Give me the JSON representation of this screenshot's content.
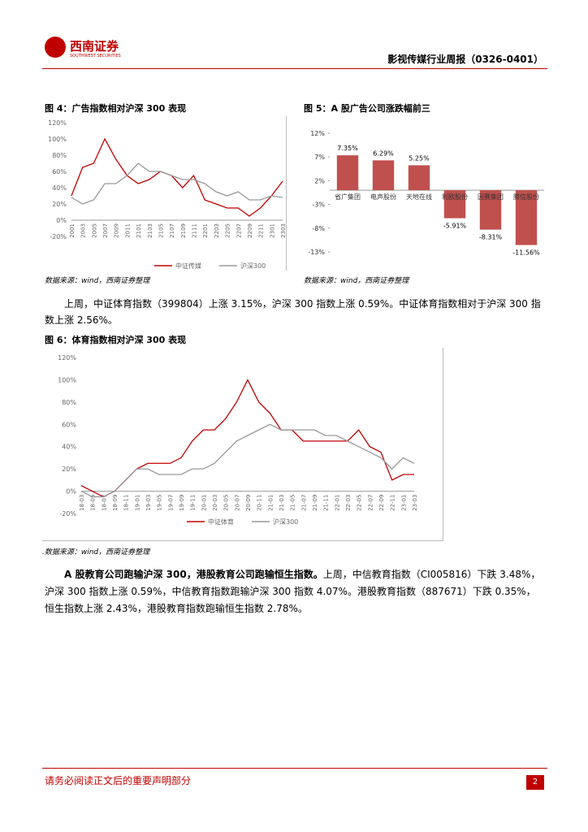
{
  "header": {
    "logo_cn": "西南证券",
    "logo_en": "SOUTHWEST SECURITIES",
    "report_title": "影视传媒行业周报（0326-0401）"
  },
  "figures": [
    {
      "title": "图 4：广告指数相对沪深 300 表现",
      "source": "数据来源：wind，西南证券整理",
      "chart_data": {
        "type": "line",
        "categories": [
          "2001",
          "2003",
          "2005",
          "2007",
          "2009",
          "2011",
          "2101",
          "2103",
          "2105",
          "2107",
          "2109",
          "2111",
          "2201",
          "2203",
          "2205",
          "2207",
          "2209",
          "2211",
          "2301",
          "2303"
        ],
        "series": [
          {
            "name": "中证传媒",
            "color": "#c00000",
            "values": [
              30,
              65,
              70,
              100,
              75,
              55,
              45,
              50,
              60,
              55,
              40,
              55,
              25,
              20,
              15,
              15,
              5,
              15,
              30,
              48
            ]
          },
          {
            "name": "沪深300",
            "color": "#999999",
            "values": [
              28,
              20,
              25,
              45,
              45,
              55,
              70,
              60,
              60,
              55,
              50,
              50,
              45,
              35,
              30,
              35,
              25,
              25,
              30,
              28
            ]
          }
        ],
        "ylim": [
          -20,
          120
        ],
        "yticks": [
          {
            "value": -20,
            "label": "-20%"
          },
          {
            "value": 0,
            "label": "0%"
          },
          {
            "value": 20,
            "label": "20%"
          },
          {
            "value": 40,
            "label": "40%"
          },
          {
            "value": 60,
            "label": "60%"
          },
          {
            "value": 80,
            "label": "80%"
          },
          {
            "value": 100,
            "label": "100%"
          },
          {
            "value": 120,
            "label": "120%"
          }
        ]
      }
    },
    {
      "title": "图 5：A 股广告公司涨跌幅前三",
      "source": "数据来源：wind，西南证券整理",
      "chart_data": {
        "type": "bar",
        "color": "#c0504d",
        "categories": [
          "省广集团",
          "电声股份",
          "天地在线",
          "利欧股份",
          "因赛集团",
          "腾信股份"
        ],
        "values": [
          7.35,
          6.29,
          5.25,
          -5.91,
          -8.31,
          -11.56
        ],
        "value_labels": [
          "7.35%",
          "6.29%",
          "5.25%",
          "-5.91%",
          "-8.31%",
          "-11.56%"
        ],
        "ylim": [
          -13,
          12
        ],
        "yticks": [
          {
            "value": 12,
            "label": "12%"
          },
          {
            "value": 7,
            "label": "7%"
          },
          {
            "value": 2,
            "label": "2%"
          },
          {
            "value": -3,
            "label": "-3%"
          },
          {
            "value": -8,
            "label": "-8%"
          },
          {
            "value": -13,
            "label": "-13%"
          }
        ]
      }
    },
    {
      "title": "图 6：体育指数相对沪深 300 表现",
      "source": ".数据来源：wind，西南证券整理",
      "chart_data": {
        "type": "line",
        "categories": [
          "18-03",
          "18-05",
          "18-07",
          "18-09",
          "18-11",
          "19-01",
          "19-03",
          "19-05",
          "19-07",
          "19-09",
          "19-11",
          "20-01",
          "20-03",
          "20-05",
          "20-07",
          "20-09",
          "20-11",
          "21-01",
          "21-03",
          "21-05",
          "21-07",
          "21-09",
          "21-11",
          "22-01",
          "22-03",
          "22-05",
          "22-07",
          "22-09",
          "22-11",
          "23-01",
          "23-03"
        ],
        "series": [
          {
            "name": "中证体育",
            "color": "#c00000",
            "values": [
              5,
              0,
              -5,
              0,
              10,
              20,
              25,
              25,
              25,
              30,
              45,
              55,
              55,
              65,
              80,
              100,
              80,
              70,
              55,
              55,
              45,
              45,
              45,
              45,
              45,
              55,
              40,
              35,
              10,
              15,
              15
            ]
          },
          {
            "name": "沪深300",
            "color": "#999999",
            "values": [
              0,
              -5,
              -5,
              0,
              10,
              20,
              20,
              15,
              15,
              15,
              20,
              20,
              25,
              35,
              45,
              50,
              55,
              60,
              55,
              55,
              55,
              55,
              50,
              50,
              45,
              40,
              35,
              30,
              20,
              30,
              25
            ]
          }
        ],
        "ylim": [
          -20,
          120
        ],
        "yticks": [
          {
            "value": -20,
            "label": "-20%"
          },
          {
            "value": 0,
            "label": "0%"
          },
          {
            "value": 20,
            "label": "20%"
          },
          {
            "value": 40,
            "label": "40%"
          },
          {
            "value": 60,
            "label": "60%"
          },
          {
            "value": 80,
            "label": "80%"
          },
          {
            "value": 100,
            "label": "100%"
          },
          {
            "value": 120,
            "label": "120%"
          }
        ]
      }
    }
  ],
  "paragraphs": [
    {
      "text": "上周，中证体育指数（399804）上涨 3.15%，沪深 300 指数上涨 0.59%。中证体育指数相对于沪深 300 指数上涨 2.56%。"
    },
    {
      "bold": "A 股教育公司跑输沪深 300，港股教育公司跑输恒生指数。",
      "text": "上周，中信教育指数（CI005816）下跌 3.48%，沪深 300 指数上涨 0.59%，中信教育指数跑输沪深 300 指数 4.07%。港股教育指数（887671）下跌 0.35%，恒生指数上涨 2.43%，港股教育指数跑输恒生指数 2.78%。"
    }
  ],
  "footer": {
    "disclaimer": "请务必阅读正文后的重要声明部分",
    "page": "2"
  }
}
